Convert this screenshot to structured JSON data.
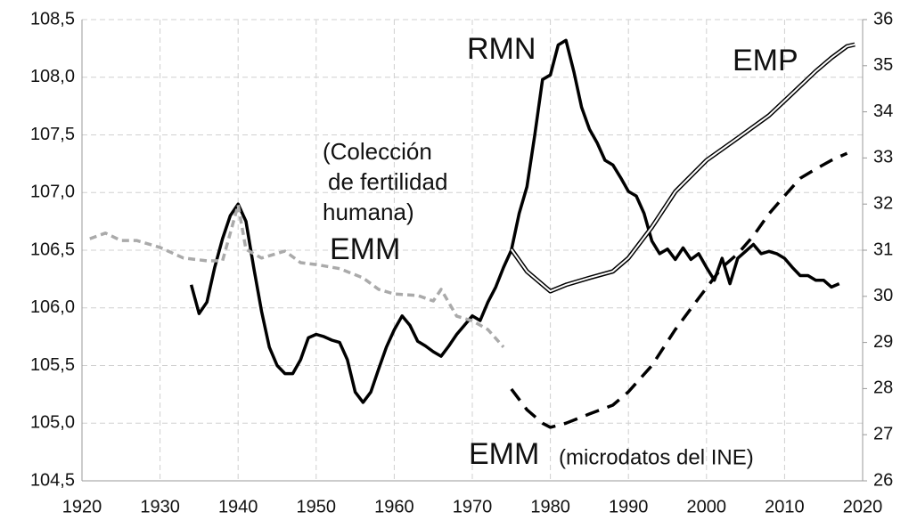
{
  "chart_data": {
    "type": "line",
    "xlim": [
      1920,
      2020
    ],
    "xticks": [
      1920,
      1930,
      1940,
      1950,
      1960,
      1970,
      1980,
      1990,
      2000,
      2010,
      2020
    ],
    "ylim": [
      104.5,
      108.5
    ],
    "yticks": [
      {
        "value": 104.5,
        "label": "104,5"
      },
      {
        "value": 105,
        "label": "105,0"
      },
      {
        "value": 105.5,
        "label": "105,5"
      },
      {
        "value": 106,
        "label": "106,0"
      },
      {
        "value": 106.5,
        "label": "106,5"
      },
      {
        "value": 107,
        "label": "107,0"
      },
      {
        "value": 107.5,
        "label": "107,5"
      },
      {
        "value": 108,
        "label": "108,0"
      },
      {
        "value": 108.5,
        "label": "108,5"
      }
    ],
    "y2lim": [
      26,
      36
    ],
    "y2ticks": [
      26,
      27,
      28,
      29,
      30,
      31,
      32,
      33,
      34,
      35,
      36
    ],
    "grid": true,
    "annotations": [
      "RMN",
      "EMP",
      "(Colección",
      "de fertilidad",
      "humana)",
      "EMM",
      "EMM",
      "(microdatos del INE)"
    ],
    "series": [
      {
        "color": "#000000",
        "style": "solid",
        "axis": "y",
        "x": [
          1934,
          1935,
          1936,
          1937,
          1938,
          1939,
          1940,
          1941,
          1942,
          1943,
          1944,
          1945,
          1946,
          1947,
          1948,
          1949,
          1950,
          1951,
          1952,
          1953,
          1954,
          1955,
          1956,
          1957,
          1958,
          1959,
          1960,
          1961,
          1962,
          1963,
          1964,
          1965,
          1966,
          1967,
          1968,
          1969,
          1970,
          1971,
          1972,
          1973,
          1974,
          1975,
          1976,
          1977,
          1978,
          1979,
          1980,
          1981,
          1982,
          1983,
          1984,
          1985,
          1986,
          1987,
          1988,
          1989,
          1990,
          1991,
          1992,
          1993,
          1994,
          1995,
          1996,
          1997,
          1998,
          1999,
          2000,
          2001,
          2002,
          2003,
          2004,
          2005,
          2006,
          2007,
          2008,
          2009,
          2010,
          2011,
          2012,
          2013,
          2014,
          2015,
          2016,
          2017
        ],
        "values": [
          106.2,
          105.95,
          106.05,
          106.35,
          106.6,
          106.8,
          106.9,
          106.75,
          106.35,
          105.97,
          105.66,
          105.5,
          105.43,
          105.43,
          105.55,
          105.74,
          105.77,
          105.75,
          105.72,
          105.7,
          105.55,
          105.27,
          105.18,
          105.27,
          105.47,
          105.66,
          105.81,
          105.93,
          105.85,
          105.71,
          105.67,
          105.62,
          105.58,
          105.67,
          105.77,
          105.85,
          105.93,
          105.89,
          106.05,
          106.18,
          106.35,
          106.5,
          106.82,
          107.05,
          107.5,
          107.98,
          108.02,
          108.28,
          108.32,
          108.05,
          107.74,
          107.55,
          107.43,
          107.28,
          107.24,
          107.13,
          107.01,
          106.97,
          106.82,
          106.58,
          106.47,
          106.51,
          106.42,
          106.52,
          106.42,
          106.47,
          106.35,
          106.24,
          106.43,
          106.21,
          106.43,
          106.49,
          106.55,
          106.47,
          106.49,
          106.47,
          106.43,
          106.35,
          106.28,
          106.28,
          106.24,
          106.24,
          106.18,
          106.21
        ]
      },
      {
        "color": "#aaaaaa",
        "style": "dashed",
        "axis": "y2",
        "x": [
          1921,
          1923,
          1925,
          1927,
          1930,
          1933,
          1936,
          1938,
          1940,
          1941,
          1943,
          1946,
          1948,
          1950,
          1953,
          1956,
          1958,
          1960,
          1963,
          1965,
          1966,
          1968,
          1970,
          1972,
          1974
        ],
        "values": [
          31.25,
          31.37,
          31.21,
          31.21,
          31.06,
          30.83,
          30.77,
          30.77,
          31.98,
          31.02,
          30.83,
          30.98,
          30.73,
          30.69,
          30.6,
          30.4,
          30.15,
          30.05,
          30.02,
          29.9,
          30.15,
          29.57,
          29.47,
          29.28,
          28.9
        ]
      },
      {
        "color": "#000000",
        "style": "dashed",
        "axis": "y2",
        "x": [
          1975,
          1977,
          1979,
          1980,
          1982,
          1985,
          1988,
          1990,
          1993,
          1996,
          1999,
          2002,
          2004,
          2006,
          2008,
          2010,
          2012,
          2014,
          2016,
          2018
        ],
        "values": [
          27.99,
          27.54,
          27.25,
          27.16,
          27.25,
          27.45,
          27.64,
          27.93,
          28.5,
          29.28,
          29.96,
          30.63,
          30.92,
          31.31,
          31.79,
          32.18,
          32.56,
          32.76,
          32.95,
          33.1
        ]
      },
      {
        "color": "#000000",
        "style": "double",
        "axis": "y2",
        "x": [
          1975,
          1977,
          1980,
          1982,
          1985,
          1988,
          1990,
          1993,
          1996,
          2000,
          2004,
          2008,
          2011,
          2014,
          2016,
          2018,
          2019
        ],
        "values": [
          31.02,
          30.54,
          30.11,
          30.25,
          30.4,
          30.54,
          30.83,
          31.5,
          32.27,
          32.95,
          33.43,
          33.92,
          34.4,
          34.88,
          35.17,
          35.42,
          35.46
        ]
      }
    ]
  }
}
